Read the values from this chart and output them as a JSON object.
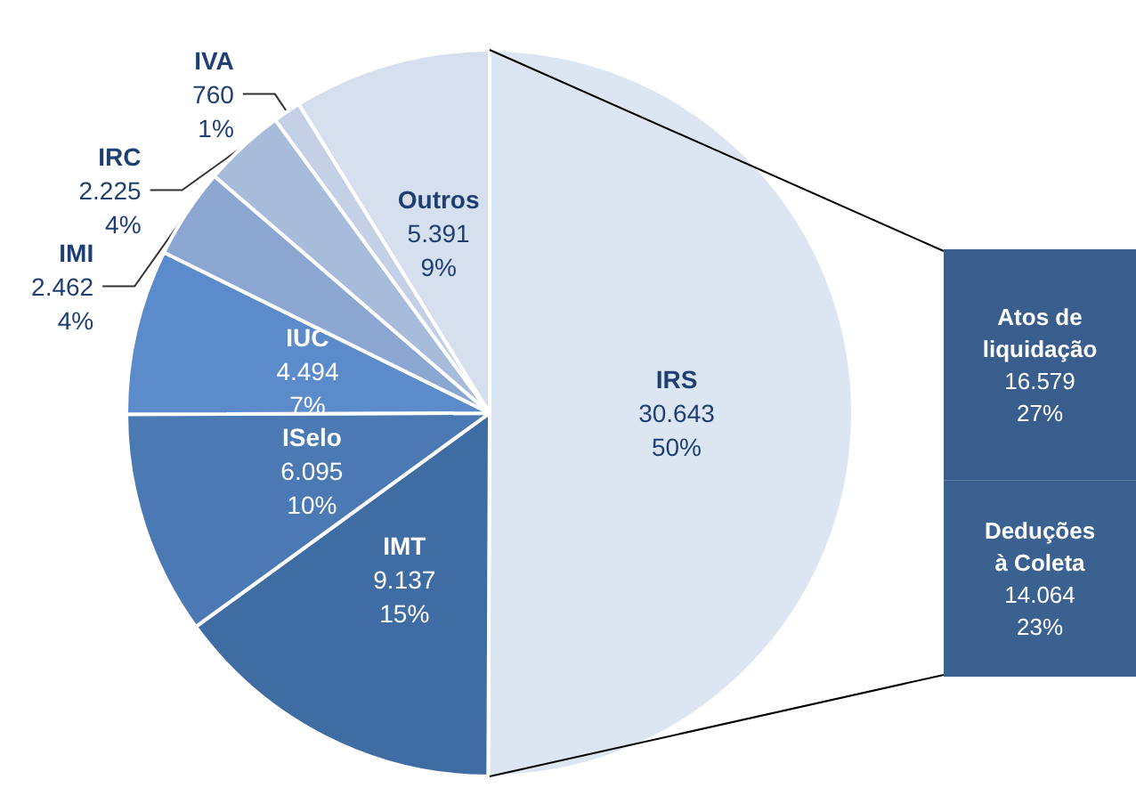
{
  "chart_data": [
    {
      "type": "pie",
      "categories": [
        "IRS",
        "IMT",
        "ISelo",
        "IUC",
        "IMI",
        "IRC",
        "IVA",
        "Outros"
      ],
      "values": [
        30643,
        9137,
        6095,
        4494,
        2462,
        2225,
        760,
        5391
      ],
      "value_labels": [
        "30.643\n50%",
        "9.137\n15%",
        "6.095\n10%",
        "4.494\n7%",
        "2.462\n4%",
        "2.225\n4%",
        "760\n1%",
        "5.391\n9%"
      ],
      "colors": [
        "#dce6f2",
        "#3f6ca3",
        "#4a79b3",
        "#5b8bcb",
        "#8ba7d1",
        "#a7bbdb",
        "#c3d0e6",
        "#d5dfee"
      ]
    },
    {
      "type": "bar",
      "stacked": true,
      "tick_labels": false,
      "categories": [
        null
      ],
      "series": [
        {
          "name": "Deduções à Coleta",
          "color": "#3b6191",
          "values": [
            14064
          ],
          "value_labels": [
            "14.064\n23%"
          ]
        },
        {
          "name": "Atos de liquidação",
          "color": "#395e8e",
          "values": [
            16579
          ],
          "value_labels": [
            "16.579\n27%"
          ]
        }
      ]
    }
  ]
}
